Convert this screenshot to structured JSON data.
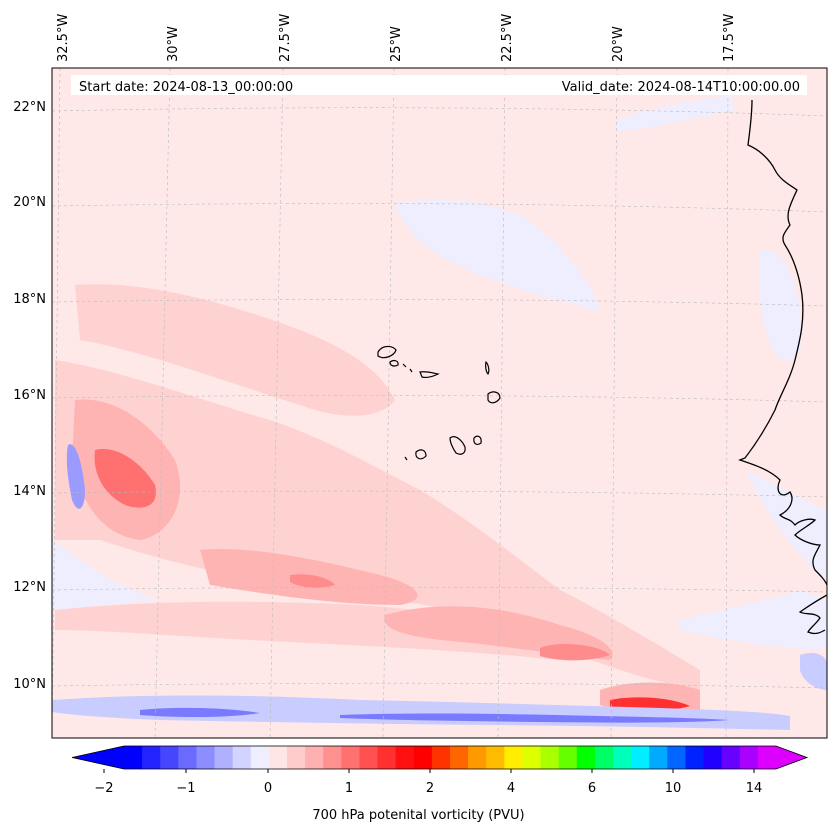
{
  "header": {
    "start_date": "Start date: 2024-08-13_00:00:00",
    "valid_date": "Valid_date: 2024-08-14T10:00:00.00"
  },
  "axes": {
    "longitudes": [
      "32.5°W",
      "30°W",
      "27.5°W",
      "25°W",
      "22.5°W",
      "20°W",
      "17.5°W"
    ],
    "latitudes": [
      "22°N",
      "20°N",
      "18°N",
      "16°N",
      "14°N",
      "12°N",
      "10°N"
    ]
  },
  "colorbar": {
    "label": "700 hPa potenital vorticity (PVU)",
    "tick_labels": [
      "−2",
      "−1",
      "0",
      "1",
      "2",
      "4",
      "6",
      "10",
      "14"
    ],
    "colors": [
      "#0000ff",
      "#2323ff",
      "#4646ff",
      "#6a6aff",
      "#8d8dff",
      "#b0b0ff",
      "#d3d3ff",
      "#eeeeff",
      "#ffe6e6",
      "#ffcccc",
      "#ffb0b0",
      "#ff9090",
      "#ff7070",
      "#ff5050",
      "#ff3030",
      "#ff1010",
      "#ff0000",
      "#ff3300",
      "#ff6600",
      "#ff9900",
      "#ffbb00",
      "#ffee00",
      "#ddff00",
      "#aaff00",
      "#66ff00",
      "#00ff00",
      "#00ff66",
      "#00ffbb",
      "#00eeff",
      "#00aaff",
      "#0066ff",
      "#0022ff",
      "#2200ff",
      "#6600ff",
      "#aa00ff",
      "#dd00ff"
    ]
  },
  "colors": {
    "background": "#ffe8e8",
    "land": "#fdeeee",
    "low_pv": "#d8dcff",
    "mid_pv": "#ffb8b8",
    "high_pv": "#ff6b6b",
    "coast": "#000000"
  }
}
